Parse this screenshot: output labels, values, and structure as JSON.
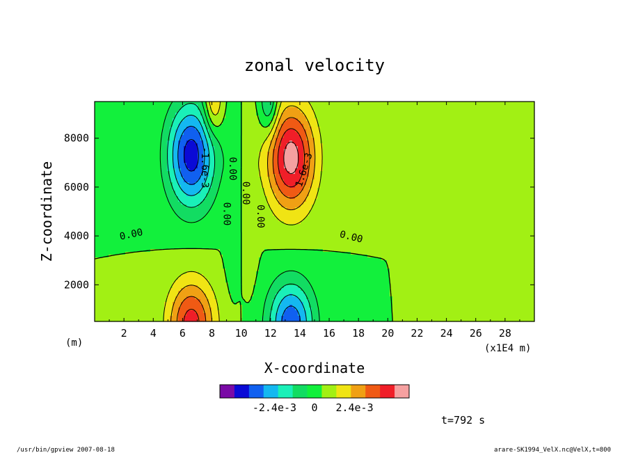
{
  "chart_data": {
    "type": "heatmap",
    "title": "zonal velocity",
    "xlabel": "X-coordinate",
    "ylabel": "Z-coordinate",
    "x_unit_left": "(m)",
    "x_unit_right": "(x1E4 m)",
    "xlim": [
      0,
      30
    ],
    "ylim": [
      500,
      9500
    ],
    "x_ticks": [
      2,
      4,
      6,
      8,
      10,
      12,
      14,
      16,
      18,
      20,
      22,
      24,
      26,
      28
    ],
    "y_ticks": [
      2000,
      4000,
      6000,
      8000
    ],
    "contour_labels": [
      "0.00",
      "0.00",
      "0.00",
      "0.00",
      "0.00",
      "0.00",
      "-1.6e-3",
      "1.6e-3"
    ],
    "extrema": [
      {
        "x": 6.6,
        "z": 7400,
        "value": -0.0042
      },
      {
        "x": 13.4,
        "z": 7200,
        "value": 0.0042
      },
      {
        "x": 6.6,
        "z": 600,
        "value": 0.0034
      },
      {
        "x": 13.4,
        "z": 600,
        "value": -0.0036
      }
    ],
    "colorbar": {
      "levels": [
        -0.0048,
        -0.004,
        -0.0032,
        -0.0024,
        -0.0016,
        -0.0008,
        0,
        0.0008,
        0.0016,
        0.0024,
        0.0032,
        0.004,
        0.0048
      ],
      "colors": [
        "#7a0aa6",
        "#0a0ad6",
        "#1060f0",
        "#14b8f0",
        "#1af0b8",
        "#12dc62",
        "#12f03c",
        "#a2f014",
        "#f0e414",
        "#f0a014",
        "#f05a14",
        "#f01e28",
        "#f5a0a0"
      ],
      "tick_labels": [
        "-2.4e-3",
        "0",
        "2.4e-3"
      ]
    }
  },
  "annotation": "t=792 s",
  "footer_left": "/usr/bin/gpview   2007-08-18",
  "footer_right": "arare-SK1994_VelX.nc@VelX,t=800"
}
